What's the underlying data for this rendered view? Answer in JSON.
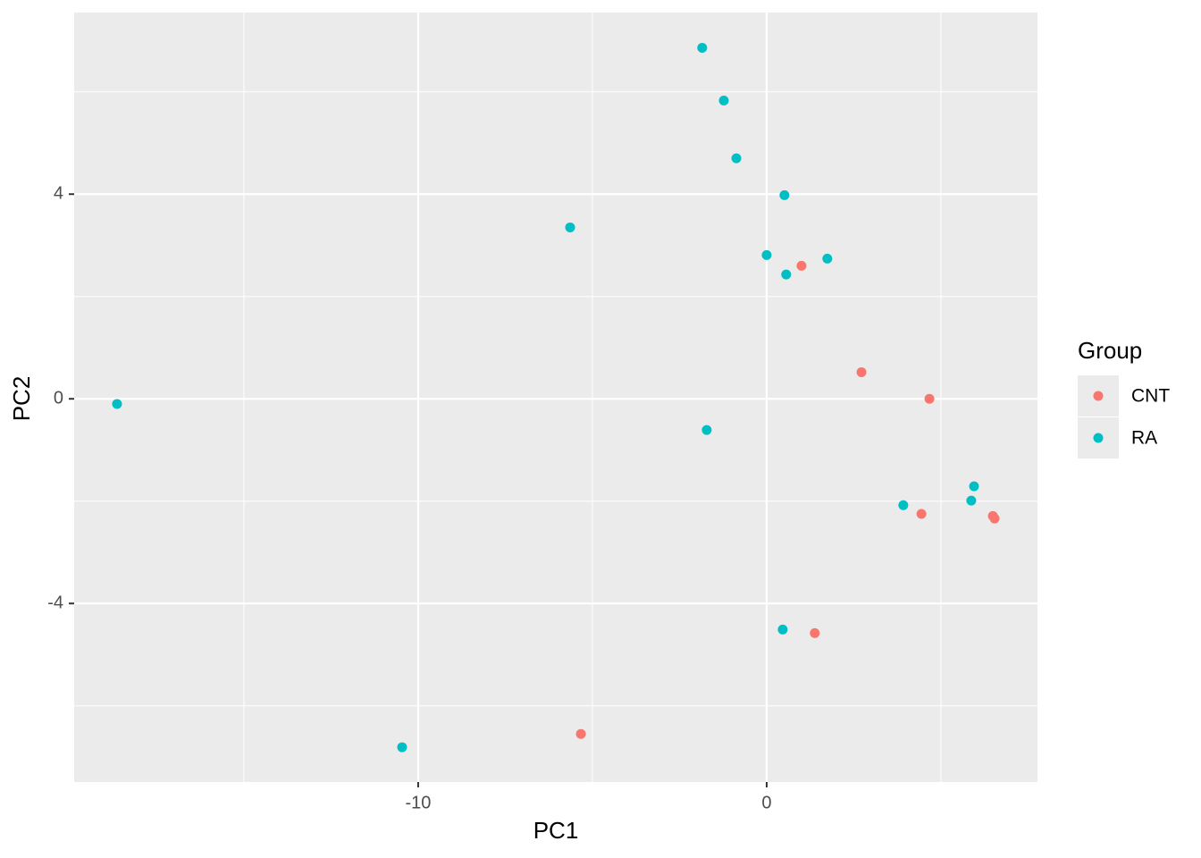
{
  "chart_data": {
    "type": "scatter",
    "x_label": "PC1",
    "y_label": "PC2",
    "xlim": [
      -19.87,
      7.77
    ],
    "ylim": [
      -7.49,
      7.55
    ],
    "xticks": [
      -10,
      0
    ],
    "yticks": [
      -4,
      0,
      4
    ],
    "x_minor_grid": [
      -15,
      -5,
      5
    ],
    "y_minor_grid": [
      -6,
      -2,
      2,
      6
    ],
    "grid": true,
    "legend_title": "Group",
    "legend_position": "right",
    "series": [
      {
        "name": "CNT",
        "color": "#f8766d",
        "x": [
          1.0,
          2.72,
          4.67,
          4.44,
          6.49,
          6.54,
          1.38,
          -5.33
        ],
        "y": [
          2.6,
          0.52,
          0.0,
          -2.25,
          -2.29,
          -2.34,
          -4.58,
          -6.55
        ]
      },
      {
        "name": "RA",
        "color": "#00bfc4",
        "x": [
          -1.85,
          -1.23,
          -0.87,
          0.51,
          -5.64,
          0.0,
          0.56,
          1.74,
          -18.64,
          -1.72,
          5.95,
          5.87,
          3.92,
          0.46,
          -10.46
        ],
        "y": [
          6.86,
          5.83,
          4.7,
          3.98,
          3.35,
          2.81,
          2.43,
          2.74,
          -0.1,
          -0.61,
          -1.71,
          -1.99,
          -2.08,
          -4.51,
          -6.81
        ]
      }
    ]
  }
}
